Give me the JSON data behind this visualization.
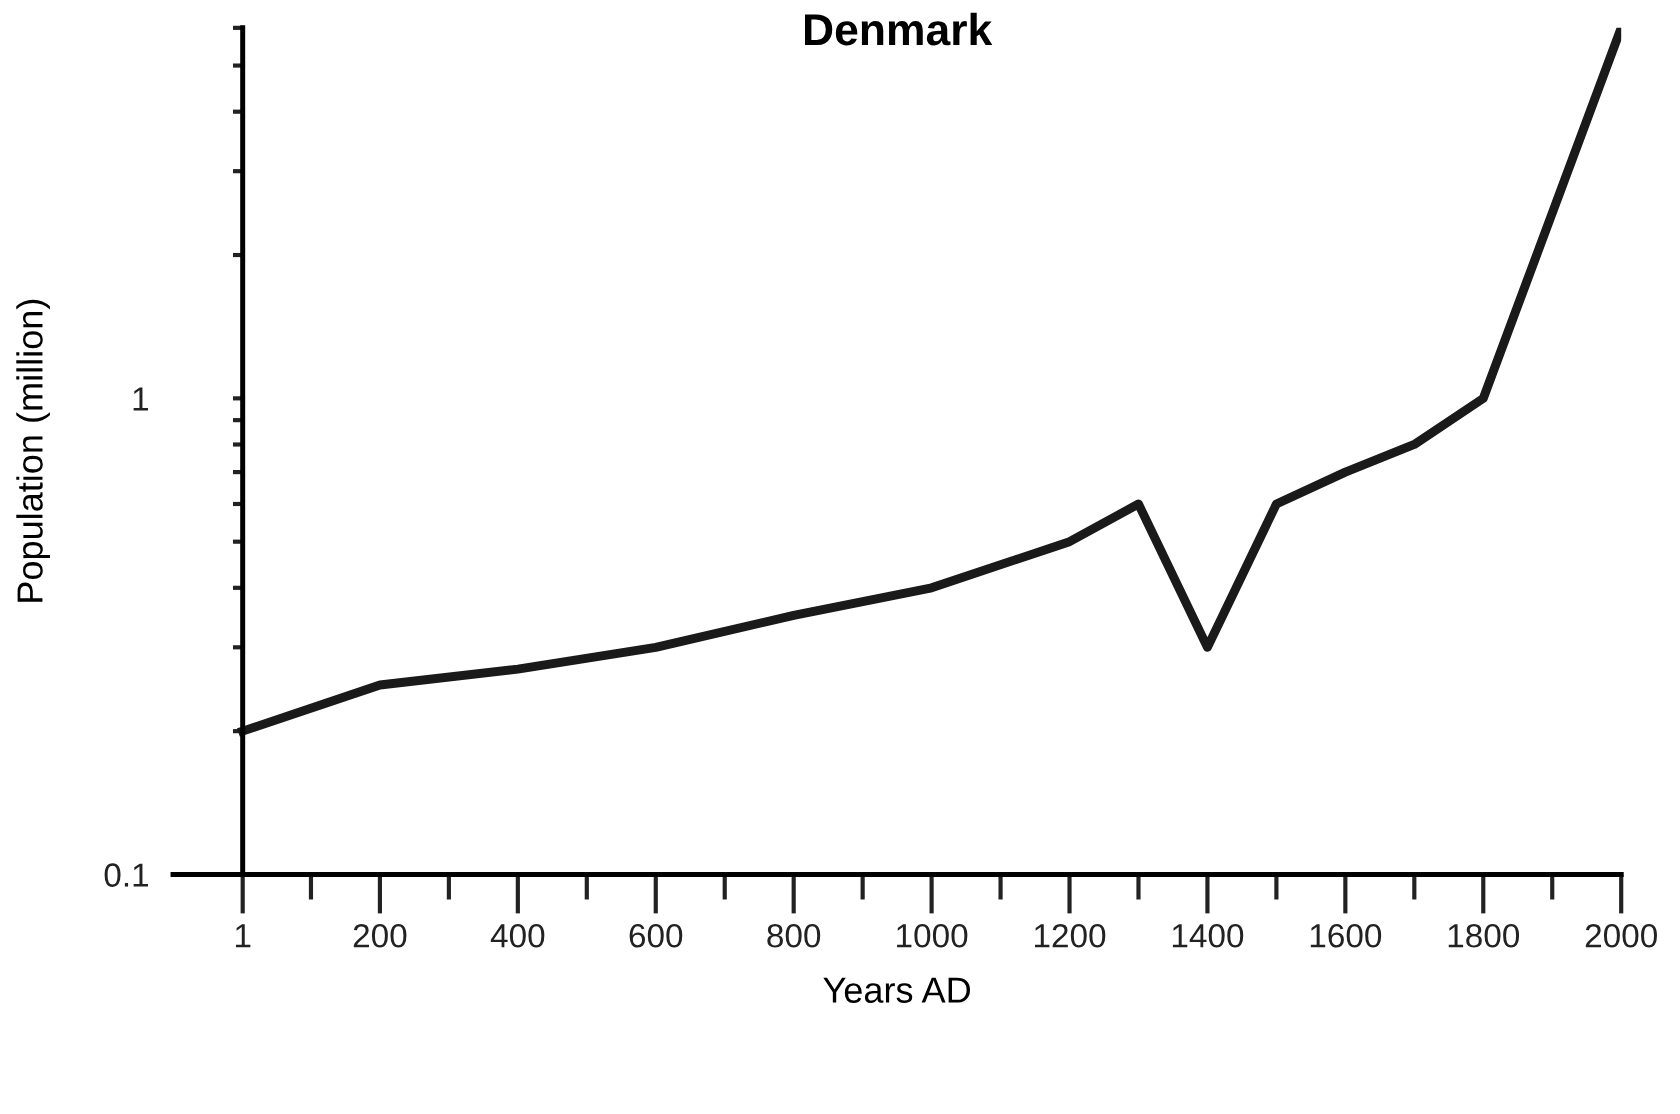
{
  "chart_data": {
    "type": "line",
    "title": "Denmark",
    "xlabel": "Years AD",
    "ylabel": "Population (million)",
    "x": [
      1,
      200,
      400,
      600,
      800,
      1000,
      1200,
      1300,
      1400,
      1500,
      1600,
      1700,
      1800,
      2000
    ],
    "series": [
      {
        "color": "#1a1a1a",
        "values": [
          0.2,
          0.25,
          0.27,
          0.3,
          0.35,
          0.4,
          0.5,
          0.6,
          0.3,
          0.6,
          0.7,
          0.8,
          1.0,
          6
        ]
      }
    ],
    "log": "y",
    "xlim": [
      -100,
      2000
    ],
    "ylim": [
      0.1,
      6
    ],
    "xticks": [
      1,
      {
        "value": 100,
        "label": null
      },
      200,
      {
        "value": 300,
        "label": null
      },
      400,
      {
        "value": 500,
        "label": null
      },
      600,
      {
        "value": 700,
        "label": null
      },
      800,
      {
        "value": 900,
        "label": null
      },
      1000,
      {
        "value": 1100,
        "label": null
      },
      1200,
      {
        "value": 1300,
        "label": null
      },
      1400,
      {
        "value": 1500,
        "label": null
      },
      1600,
      {
        "value": 1700,
        "label": null
      },
      1800,
      {
        "value": 1900,
        "label": null
      },
      2000
    ],
    "yticks": [
      0.1,
      {
        "value": 0.2,
        "label": null
      },
      {
        "value": 0.3,
        "label": null
      },
      {
        "value": 0.4,
        "label": null
      },
      {
        "value": 0.5,
        "label": null
      },
      {
        "value": 0.6,
        "label": null
      },
      {
        "value": 0.7,
        "label": null
      },
      {
        "value": 0.8,
        "label": null
      },
      {
        "value": 0.9,
        "label": null
      },
      1,
      {
        "value": 2,
        "label": null
      },
      {
        "value": 3,
        "label": null
      },
      {
        "value": 4,
        "label": null
      },
      {
        "value": 5,
        "label": null
      },
      {
        "value": 6,
        "label": null
      }
    ],
    "marker": "none",
    "line_style": "solid"
  }
}
